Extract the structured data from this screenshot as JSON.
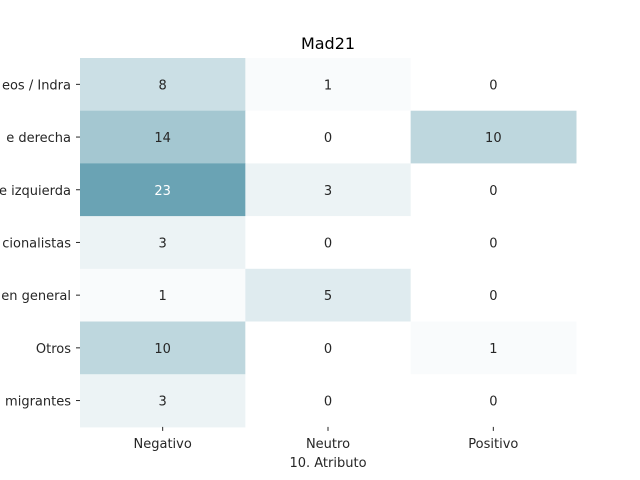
{
  "chart_data": {
    "type": "heatmap",
    "title": "Mad21",
    "xlabel": "10. Atributo",
    "ylabel": "",
    "x_categories": [
      "Negativo",
      "Neutro",
      "Positivo"
    ],
    "y_categories": [
      "eos / Indra",
      "e derecha",
      "e izquierda",
      "cionalistas",
      "en general",
      "Otros",
      "migrantes"
    ],
    "values": [
      [
        8,
        1,
        0
      ],
      [
        14,
        0,
        10
      ],
      [
        23,
        3,
        0
      ],
      [
        3,
        0,
        0
      ],
      [
        1,
        5,
        0
      ],
      [
        10,
        0,
        1
      ],
      [
        3,
        0,
        0
      ]
    ],
    "colorscale": {
      "low": "#ffffff",
      "high": "#6aa3b4",
      "min": 0,
      "max": 23
    }
  }
}
